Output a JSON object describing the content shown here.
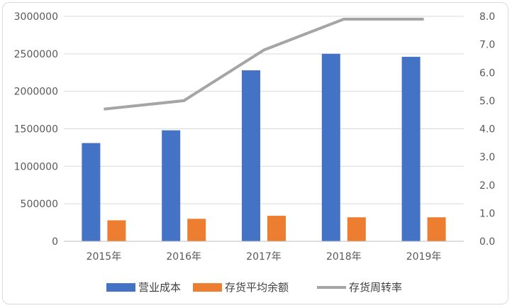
{
  "chart_data": {
    "type": "bar",
    "categories": [
      "2015年",
      "2016年",
      "2017年",
      "2018年",
      "2019年"
    ],
    "series": [
      {
        "name": "营业成本",
        "kind": "bar",
        "axis": "left",
        "color": "#4472C4",
        "values": [
          1310000,
          1480000,
          2280000,
          2500000,
          2460000
        ]
      },
      {
        "name": "存货平均余额",
        "kind": "bar",
        "axis": "left",
        "color": "#ED7D31",
        "values": [
          280000,
          300000,
          340000,
          320000,
          320000
        ]
      },
      {
        "name": "存货周转率",
        "kind": "line",
        "axis": "right",
        "color": "#A5A5A5",
        "values": [
          4.7,
          5.0,
          6.8,
          7.9,
          7.9
        ]
      }
    ],
    "y_left": {
      "min": 0,
      "max": 3000000,
      "step": 500000,
      "ticks": [
        "0",
        "500000",
        "1000000",
        "1500000",
        "2000000",
        "2500000",
        "3000000"
      ]
    },
    "y_right": {
      "min": 0,
      "max": 8,
      "step": 1,
      "ticks": [
        "0.0",
        "1.0",
        "2.0",
        "3.0",
        "4.0",
        "5.0",
        "6.0",
        "7.0",
        "8.0"
      ]
    },
    "grid": true,
    "legend_position": "bottom"
  }
}
